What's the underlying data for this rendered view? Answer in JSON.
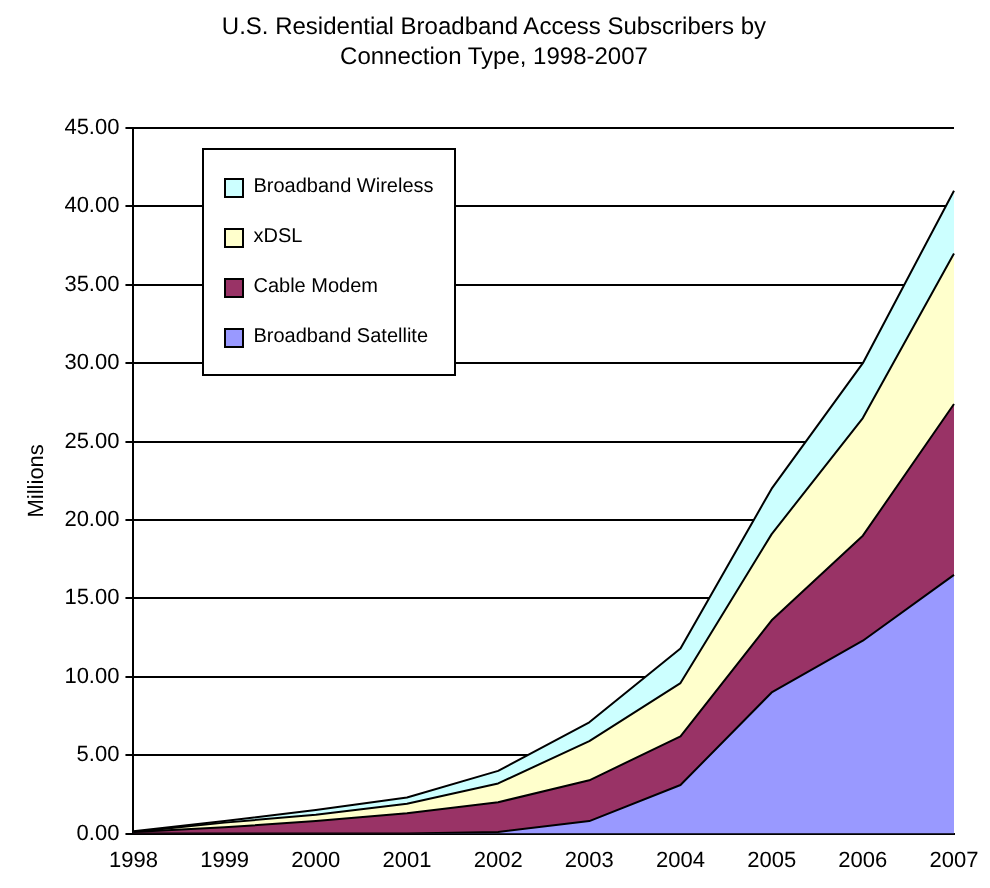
{
  "chart_data": {
    "type": "area",
    "title": "U.S. Residential Broadband Access Subscribers by Connection Type, 1998-2007",
    "ylabel": "Millions",
    "categories": [
      "1998",
      "1999",
      "2000",
      "2001",
      "2002",
      "2003",
      "2004",
      "2005",
      "2006",
      "2007"
    ],
    "stacked": true,
    "series": [
      {
        "name": "Broadband Satellite",
        "color": "#9999ff",
        "values": [
          0,
          0,
          0,
          0,
          0.1,
          0.8,
          3.1,
          9.0,
          12.3,
          16.5
        ]
      },
      {
        "name": "Cable Modem",
        "color": "#993366",
        "values": [
          0.1,
          0.4,
          0.8,
          1.3,
          1.9,
          2.6,
          3.1,
          4.6,
          6.7,
          10.9
        ]
      },
      {
        "name": "xDSL",
        "color": "#ffffcc",
        "values": [
          0,
          0.3,
          0.4,
          0.6,
          1.2,
          2.5,
          3.4,
          5.5,
          7.5,
          9.6
        ]
      },
      {
        "name": "Broadband Wireless",
        "color": "#ccffff",
        "values": [
          0.05,
          0.1,
          0.3,
          0.4,
          0.8,
          1.2,
          2.2,
          2.9,
          3.5,
          4.0
        ]
      }
    ],
    "ylim": [
      0,
      45
    ],
    "yticks": [
      {
        "value": 0,
        "label": "0.00"
      },
      {
        "value": 5,
        "label": "5.00"
      },
      {
        "value": 10,
        "label": "10.00"
      },
      {
        "value": 15,
        "label": "15.00"
      },
      {
        "value": 20,
        "label": "20.00"
      },
      {
        "value": 25,
        "label": "25.00"
      },
      {
        "value": 30,
        "label": "30.00"
      },
      {
        "value": 35,
        "label": "35.00"
      },
      {
        "value": 40,
        "label": "40.00"
      },
      {
        "value": 45,
        "label": "45.00"
      }
    ],
    "grid": "y",
    "legend": "top left"
  }
}
